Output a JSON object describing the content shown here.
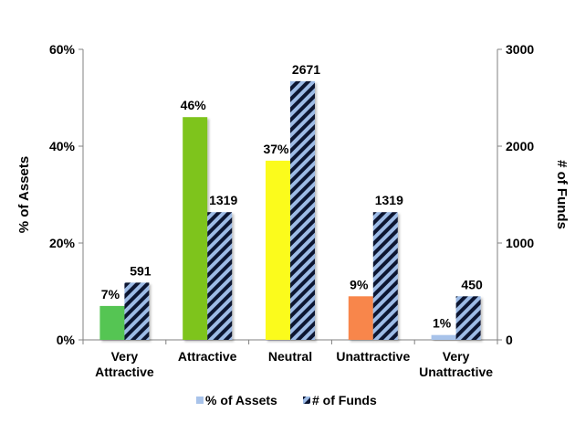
{
  "chart_data": {
    "type": "bar",
    "categories": [
      [
        "Very",
        "Attractive"
      ],
      [
        "Attractive"
      ],
      [
        "Neutral"
      ],
      [
        "Unattractive"
      ],
      [
        "Very",
        "Unattractive"
      ]
    ],
    "series": [
      {
        "name": "% of Assets",
        "axis": "left",
        "values": [
          7,
          46,
          37,
          9,
          1
        ],
        "labels": [
          "7%",
          "46%",
          "37%",
          "9%",
          "1%"
        ],
        "colors": [
          "#55c552",
          "#7ec41f",
          "#fbfb1a",
          "#f8864b",
          "#a8c3ea"
        ]
      },
      {
        "name": "# of Funds",
        "axis": "right",
        "values": [
          591,
          1319,
          2671,
          1319,
          450
        ],
        "labels": [
          "591",
          "1319",
          "2671",
          "1319",
          "450"
        ],
        "fill": "hatched",
        "colors": [
          "#0b1530",
          "#9dbbe6"
        ]
      }
    ],
    "y_left": {
      "label": "% of Assets",
      "range": [
        0,
        60
      ],
      "ticks": [
        0,
        20,
        40,
        60
      ],
      "tick_labels": [
        "0%",
        "20%",
        "40%",
        "60%"
      ]
    },
    "y_right": {
      "label": "# of Funds",
      "range": [
        0,
        3000
      ],
      "ticks": [
        0,
        1000,
        2000,
        3000
      ],
      "tick_labels": [
        "0",
        "1000",
        "2000",
        "3000"
      ]
    },
    "grid": false,
    "legend": "bottom-center"
  }
}
